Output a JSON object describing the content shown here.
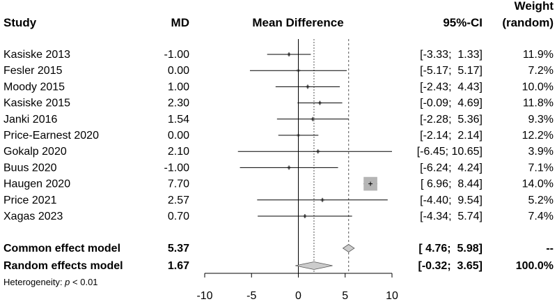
{
  "chart_data": {
    "type": "forest",
    "columns": {
      "study": "Study",
      "md": "MD",
      "plot": "Mean Difference",
      "ci": "95%-CI",
      "weight_line1": "Weight",
      "weight_line2": "(random)"
    },
    "xlim": [
      -10,
      10
    ],
    "ticks": [
      -10,
      -5,
      0,
      5,
      10
    ],
    "tick_labels": [
      "-10",
      "-5",
      "0",
      "5",
      "10"
    ],
    "studies": [
      {
        "name": "Kasiske 2013",
        "md_label": "-1.00",
        "md": -1.0,
        "lo": -3.33,
        "hi": 1.33,
        "ci_label": "[-3.33;  1.33]",
        "weight": 11.9,
        "weight_label": "11.9%"
      },
      {
        "name": "Fesler 2015",
        "md_label": "0.00",
        "md": 0.0,
        "lo": -5.17,
        "hi": 5.17,
        "ci_label": "[-5.17;  5.17]",
        "weight": 7.2,
        "weight_label": "7.2%"
      },
      {
        "name": "Moody 2015",
        "md_label": "1.00",
        "md": 1.0,
        "lo": -2.43,
        "hi": 4.43,
        "ci_label": "[-2.43;  4.43]",
        "weight": 10.0,
        "weight_label": "10.0%"
      },
      {
        "name": "Kasiske 2015",
        "md_label": "2.30",
        "md": 2.3,
        "lo": -0.09,
        "hi": 4.69,
        "ci_label": "[-0.09;  4.69]",
        "weight": 11.8,
        "weight_label": "11.8%"
      },
      {
        "name": "Janki 2016",
        "md_label": "1.54",
        "md": 1.54,
        "lo": -2.28,
        "hi": 5.36,
        "ci_label": "[-2.28;  5.36]",
        "weight": 9.3,
        "weight_label": "9.3%"
      },
      {
        "name": "Price-Earnest 2020",
        "md_label": "0.00",
        "md": 0.0,
        "lo": -2.14,
        "hi": 2.14,
        "ci_label": "[-2.14;  2.14]",
        "weight": 12.2,
        "weight_label": "12.2%"
      },
      {
        "name": "Gokalp 2020",
        "md_label": "2.10",
        "md": 2.1,
        "lo": -6.45,
        "hi": 10.65,
        "ci_label": "[-6.45; 10.65]",
        "weight": 3.9,
        "weight_label": "3.9%"
      },
      {
        "name": "Buus 2020",
        "md_label": "-1.00",
        "md": -1.0,
        "lo": -6.24,
        "hi": 4.24,
        "ci_label": "[-6.24;  4.24]",
        "weight": 7.1,
        "weight_label": "7.1%"
      },
      {
        "name": "Haugen 2020",
        "md_label": "7.70",
        "md": 7.7,
        "lo": 6.96,
        "hi": 8.44,
        "ci_label": "[ 6.96;  8.44]",
        "weight": 14.0,
        "weight_label": "14.0%"
      },
      {
        "name": "Price 2021",
        "md_label": "2.57",
        "md": 2.57,
        "lo": -4.4,
        "hi": 9.54,
        "ci_label": "[-4.40;  9.54]",
        "weight": 5.2,
        "weight_label": "5.2%"
      },
      {
        "name": "Xagas 2023",
        "md_label": "0.70",
        "md": 0.7,
        "lo": -4.34,
        "hi": 5.74,
        "ci_label": "[-4.34;  5.74]",
        "weight": 7.4,
        "weight_label": "7.4%"
      }
    ],
    "summaries": [
      {
        "name": "Common effect model",
        "md_label": "5.37",
        "md": 5.37,
        "lo": 4.76,
        "hi": 5.98,
        "ci_label": "[ 4.76;  5.98]",
        "weight_label": "--"
      },
      {
        "name": "Random effects model",
        "md_label": "1.67",
        "md": 1.67,
        "lo": -0.32,
        "hi": 3.65,
        "ci_label": "[-0.32;  3.65]",
        "weight_label": "100.0%"
      }
    ],
    "heterogeneity": {
      "prefix": "Heterogeneity: ",
      "italic": "p",
      "suffix": " < 0.01"
    },
    "colors": {
      "square": "#b5b5b5",
      "diamond": "#cccccc",
      "line": "#000000",
      "ref_dash": "#555555"
    }
  }
}
